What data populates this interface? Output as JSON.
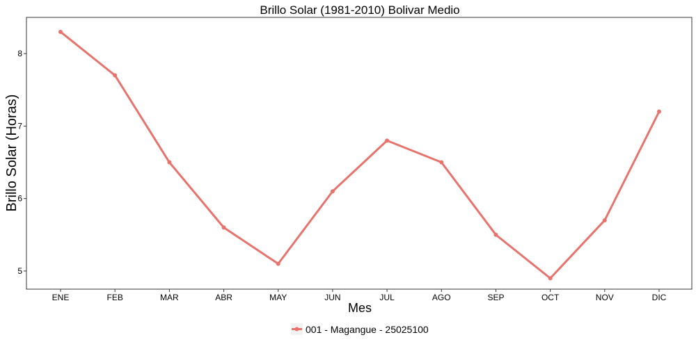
{
  "chart_data": {
    "type": "line",
    "title": "Brillo Solar (1981-2010)  Bolivar Medio",
    "xlabel": "Mes",
    "ylabel": "Brillo Solar (Horas)",
    "categories": [
      "ENE",
      "FEB",
      "MAR",
      "ABR",
      "MAY",
      "JUN",
      "JUL",
      "AGO",
      "SEP",
      "OCT",
      "NOV",
      "DIC"
    ],
    "y_ticks": [
      5,
      6,
      7,
      8
    ],
    "ylim": [
      4.75,
      8.5
    ],
    "grid": false,
    "legend_position": "bottom",
    "series": [
      {
        "name": "001 - Magangue - 25025100",
        "color": "#e8736d",
        "values": [
          8.3,
          7.7,
          6.5,
          5.6,
          5.1,
          6.1,
          6.8,
          6.5,
          5.5,
          4.9,
          5.7,
          7.2
        ]
      }
    ]
  }
}
